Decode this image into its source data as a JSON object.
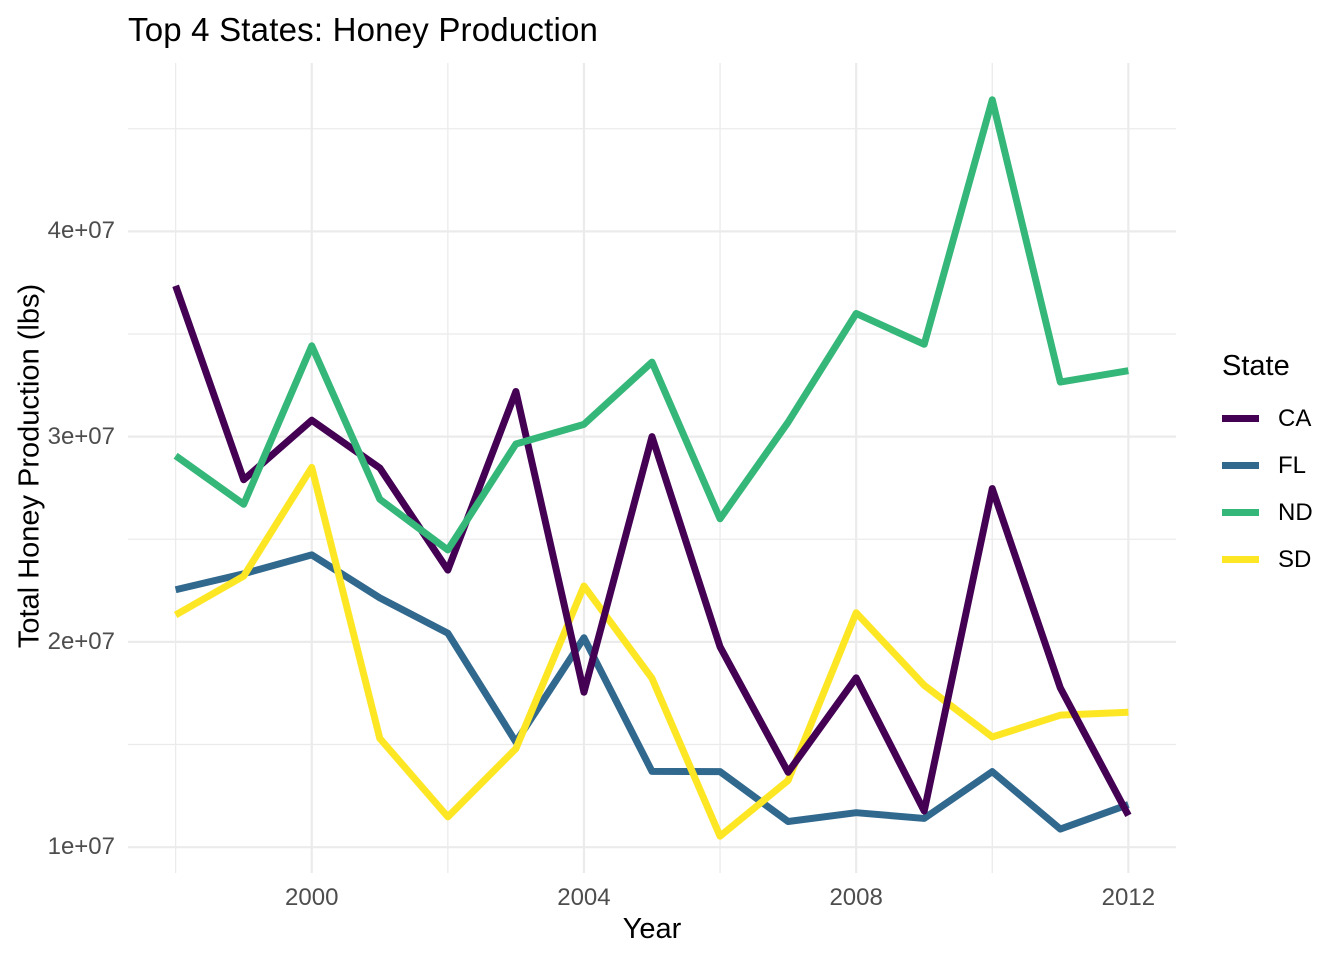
{
  "colors": {
    "background": "#FFFFFF",
    "grid": "#EBEBEB",
    "tick_text": "#4D4D4D",
    "text": "#000000",
    "CA": "#440154",
    "FL": "#31688E",
    "ND": "#35B779",
    "SD": "#FDE725"
  },
  "chart_data": {
    "type": "line",
    "title": "Top 4 States: Honey Production",
    "xlabel": "Year",
    "ylabel": "Total Honey Production (lbs)",
    "x": [
      1998,
      1999,
      2000,
      2001,
      2002,
      2003,
      2004,
      2005,
      2006,
      2007,
      2008,
      2009,
      2010,
      2011,
      2012
    ],
    "series": [
      {
        "name": "CA",
        "color": "#440154",
        "values": [
          37350000,
          27900000,
          30800000,
          28475000,
          23500000,
          32200000,
          17550000,
          30000000,
          19760000,
          13650000,
          18250000,
          11760000,
          27470000,
          17760000,
          11550000
        ]
      },
      {
        "name": "FL",
        "color": "#31688E",
        "values": [
          22540000,
          23320000,
          24240000,
          22145000,
          20425000,
          15120000,
          20200000,
          13690000,
          13680000,
          11250000,
          11680000,
          11400000,
          13680000,
          10880000,
          12075000
        ]
      },
      {
        "name": "ND",
        "color": "#35B779",
        "values": [
          29070000,
          26705000,
          34425000,
          26950000,
          24480000,
          29640000,
          30600000,
          33630000,
          26000000,
          30705000,
          36000000,
          34500000,
          46410000,
          32660000,
          33215000
        ]
      },
      {
        "name": "SD",
        "color": "#FDE725",
        "values": [
          21315000,
          23205000,
          28500000,
          15300000,
          11475000,
          14800000,
          22725000,
          18225000,
          10535000,
          13250000,
          21420000,
          17885000,
          15370000,
          16430000,
          16575000
        ]
      }
    ],
    "draw_order": [
      "FL",
      "SD",
      "CA",
      "ND"
    ],
    "x_ticks": {
      "values": [
        2000,
        2004,
        2008,
        2012
      ],
      "labels": [
        "2000",
        "2004",
        "2008",
        "2012"
      ]
    },
    "x_minor": [
      1998,
      2002,
      2006,
      2010
    ],
    "y_ticks": {
      "values": [
        10000000,
        20000000,
        30000000,
        40000000
      ],
      "labels": [
        "1e+07",
        "2e+07",
        "3e+07",
        "4e+07"
      ]
    },
    "y_minor": [
      15000000,
      25000000,
      35000000,
      45000000
    ],
    "x_range": [
      1997.3,
      2012.7
    ],
    "y_range": [
      8741250,
      48203750
    ],
    "grid": true,
    "legend": {
      "title": "State",
      "position": "right",
      "entries": [
        "CA",
        "FL",
        "ND",
        "SD"
      ]
    }
  }
}
